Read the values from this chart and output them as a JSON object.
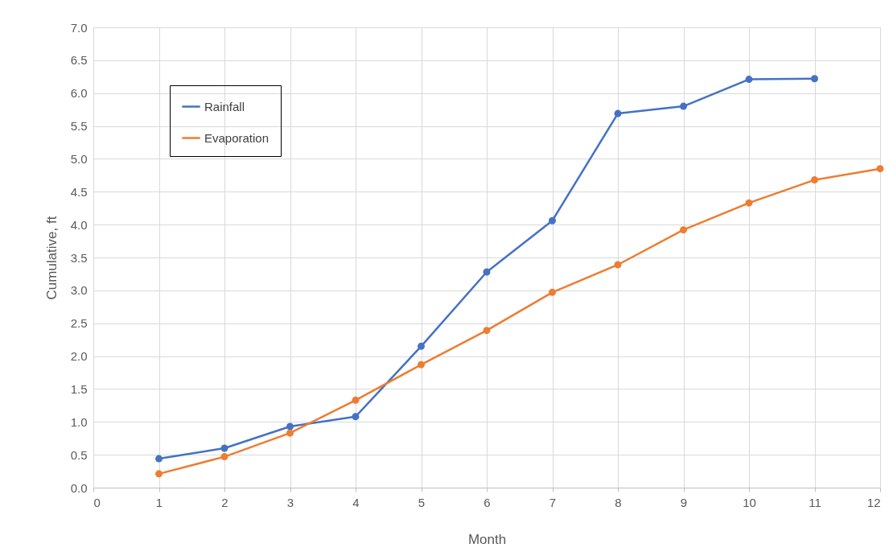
{
  "chart_data": {
    "type": "line",
    "xlabel": "Month",
    "ylabel": "Cumulative, ft",
    "x": [
      1,
      2,
      3,
      4,
      5,
      6,
      7,
      8,
      9,
      10,
      11,
      12
    ],
    "series": [
      {
        "name": "Rainfall",
        "color": "#4472c4",
        "values": [
          0.44,
          0.6,
          0.93,
          1.08,
          2.15,
          3.28,
          4.06,
          5.69,
          5.8,
          6.21,
          6.22,
          null
        ]
      },
      {
        "name": "Evaporation",
        "color": "#ed7d31",
        "values": [
          0.21,
          0.47,
          0.83,
          1.33,
          1.87,
          2.39,
          2.97,
          3.39,
          3.92,
          4.33,
          4.68,
          4.85
        ]
      }
    ],
    "xlim": [
      0,
      12
    ],
    "xticks": [
      0,
      1,
      2,
      3,
      4,
      5,
      6,
      7,
      8,
      9,
      10,
      11,
      12
    ],
    "ylim": [
      0,
      7
    ],
    "yticks": [
      {
        "value": 0,
        "label": "0.0"
      },
      {
        "value": 0.5,
        "label": "0.5"
      },
      {
        "value": 1,
        "label": "1.0"
      },
      {
        "value": 1.5,
        "label": "1.5"
      },
      {
        "value": 2,
        "label": "2.0"
      },
      {
        "value": 2.5,
        "label": "2.5"
      },
      {
        "value": 3,
        "label": "3.0"
      },
      {
        "value": 3.5,
        "label": "3.5"
      },
      {
        "value": 4,
        "label": "4.0"
      },
      {
        "value": 4.5,
        "label": "4.5"
      },
      {
        "value": 5,
        "label": "5.0"
      },
      {
        "value": 5.5,
        "label": "5.5"
      },
      {
        "value": 6,
        "label": "6.0"
      },
      {
        "value": 6.5,
        "label": "6.5"
      },
      {
        "value": 7,
        "label": "7.0"
      }
    ],
    "grid": true,
    "legend": "top left",
    "marker": "circle",
    "line_style": "solid"
  }
}
